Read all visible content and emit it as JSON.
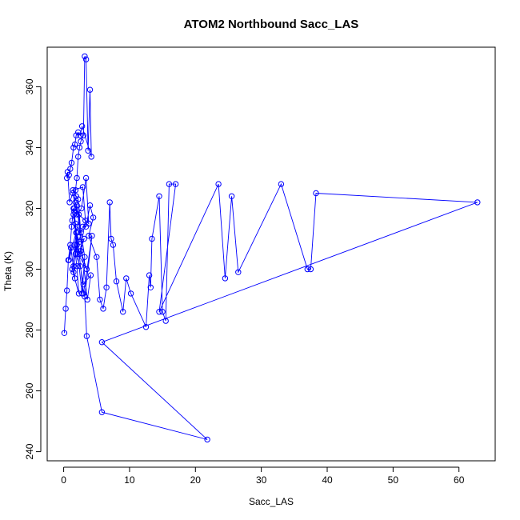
{
  "chart_data": {
    "type": "line",
    "title": "ATOM2 Northbound Sacc_LAS",
    "xlabel": "Sacc_LAS",
    "ylabel": "Theta (K)",
    "xlim": [
      -2.5,
      65.5
    ],
    "ylim": [
      237,
      373
    ],
    "xticks": [
      0,
      10,
      20,
      30,
      40,
      50,
      60
    ],
    "yticks": [
      240,
      260,
      280,
      300,
      320,
      340,
      360
    ],
    "grid": false,
    "colors": {
      "series": "#0000ff",
      "axes": "#000000"
    },
    "series": [
      {
        "x": [
          0.1,
          0.3,
          0.5,
          0.7,
          1.0,
          1.2,
          1.3,
          1.5,
          1.6,
          1.8,
          2.0,
          2.2,
          2.4,
          2.6,
          3.0,
          3.2,
          3.4,
          3.7,
          4.0,
          4.2,
          2.8,
          2.5,
          2.2,
          1.9,
          1.7,
          1.5,
          1.2,
          1.0,
          0.8,
          0.5,
          0.6,
          0.9,
          1.4,
          2.0,
          2.7,
          3.4,
          3.8,
          2.3,
          1.8,
          1.6,
          2.0,
          1.5,
          1.7,
          1.1,
          0.8,
          2.1,
          2.6,
          2.2,
          1.9,
          1.4,
          2.9,
          3.3,
          2.4,
          1.6,
          2.0,
          2.3,
          1.3,
          1.9,
          2.4,
          3.1,
          2.6,
          3.5,
          2.2,
          1.8,
          1.5,
          2.8,
          3.2,
          2.0,
          3.6,
          4.1,
          3.0,
          2.5,
          1.8,
          2.9,
          3.4,
          4.0,
          4.5,
          3.8,
          5.0,
          5.5,
          6.0,
          6.5,
          7.0,
          7.2,
          7.5,
          8.0,
          9.0,
          9.5,
          10.2,
          12.5,
          13.0,
          13.2,
          13.4,
          14.5,
          15.0,
          15.5,
          16.0,
          17.0,
          14.5,
          23.5,
          24.5,
          25.5,
          26.5,
          33.0,
          37.0,
          37.5,
          38.3,
          62.8,
          5.8,
          21.8,
          5.8,
          3.5,
          3.2,
          4.3,
          3.0,
          2.0,
          1.5
        ],
        "y": [
          279,
          287,
          293,
          303,
          308,
          314,
          316,
          320,
          319,
          326,
          330,
          337,
          340,
          342,
          344,
          370,
          369,
          339,
          359,
          337,
          347,
          344,
          345,
          344,
          341,
          340,
          335,
          333,
          331,
          330,
          332,
          322,
          325,
          318,
          320,
          330,
          315,
          318,
          322,
          320,
          308,
          301,
          297,
          307,
          303,
          314,
          312,
          323,
          324,
          326,
          327,
          316,
          305,
          308,
          301,
          292,
          300,
          312,
          309,
          310,
          306,
          300,
          305,
          315,
          318,
          292,
          304,
          321,
          290,
          298,
          295,
          301,
          305,
          314,
          314,
          321,
          317,
          311,
          304,
          290,
          287,
          294,
          322,
          310,
          308,
          296,
          286,
          297,
          292,
          281,
          298,
          294,
          310,
          324,
          286,
          283,
          328,
          328,
          286,
          328,
          297,
          324,
          299,
          328,
          300,
          300,
          325,
          322,
          276,
          244,
          253,
          278,
          291,
          311,
          292,
          312,
          299
        ]
      }
    ]
  }
}
